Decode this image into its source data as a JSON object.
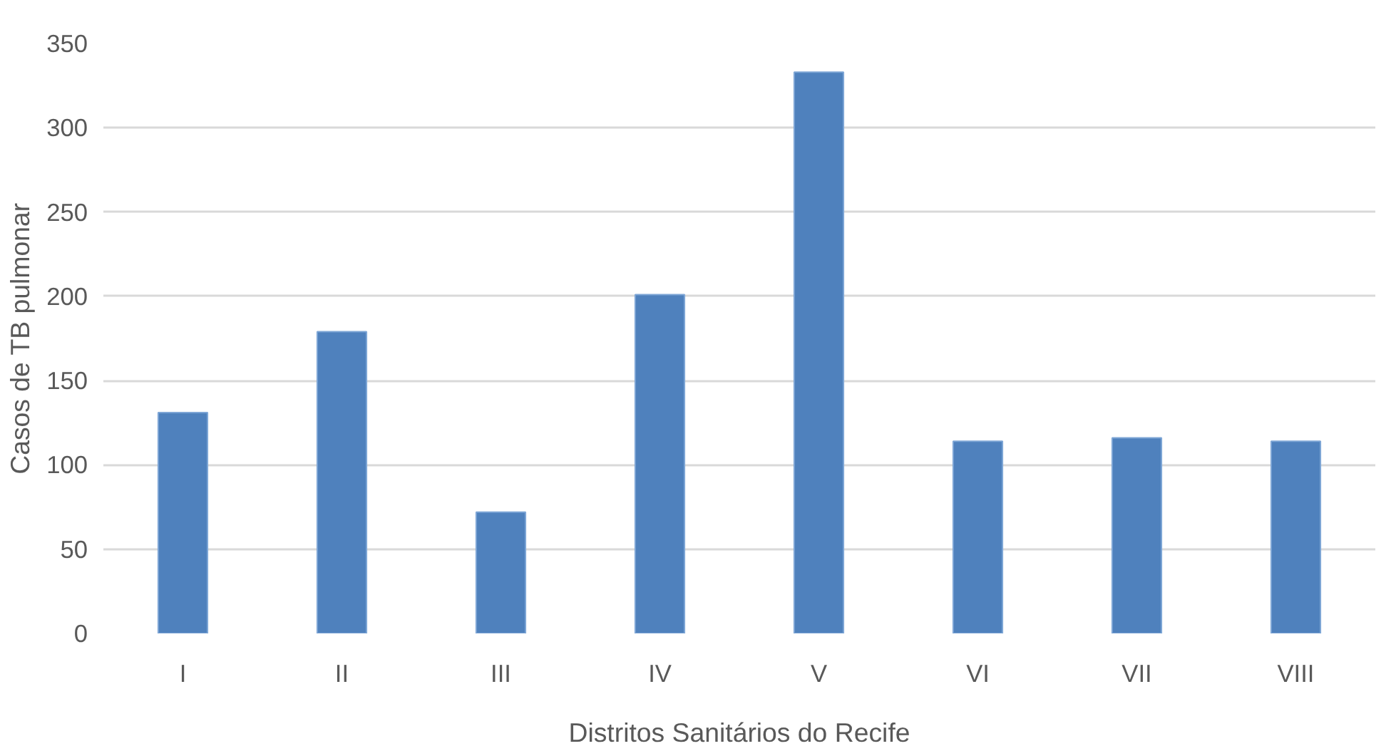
{
  "chart_data": {
    "type": "bar",
    "xlabel": "Distritos Sanitários do Recife",
    "ylabel": "Casos de TB pulmonar",
    "categories": [
      "I",
      "II",
      "III",
      "IV",
      "V",
      "VI",
      "VII",
      "VIII"
    ],
    "values": [
      131,
      179,
      72,
      201,
      333,
      114,
      116,
      114
    ],
    "color": "#4f81bd",
    "ylim": [
      0,
      350
    ],
    "yticks": [
      0,
      50,
      100,
      150,
      200,
      250,
      300,
      350
    ],
    "grid": "y"
  }
}
